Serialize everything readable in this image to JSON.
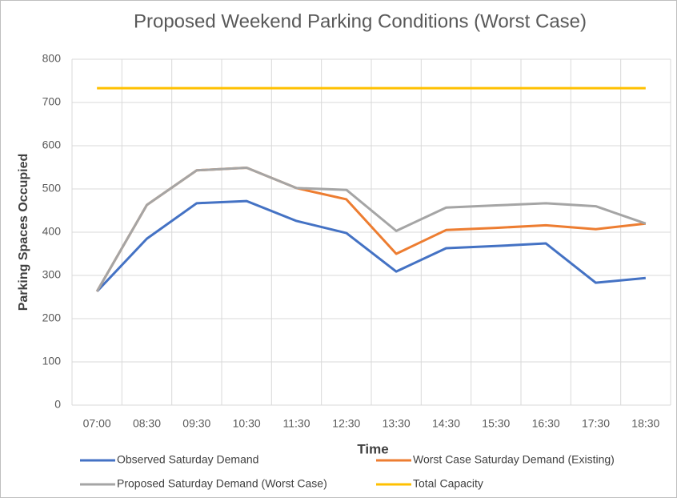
{
  "chart_data": {
    "type": "line",
    "title": "Proposed Weekend Parking Conditions (Worst Case)",
    "x_label": "Time",
    "y_label": "Parking Spaces Occupied",
    "categories": [
      "07:00",
      "08:30",
      "09:30",
      "10:30",
      "11:30",
      "12:30",
      "13:30",
      "14:30",
      "15:30",
      "16:30",
      "17:30",
      "18:30"
    ],
    "series": [
      {
        "name": "Observed Saturday Demand",
        "color": "#4472c4",
        "values": [
          263,
          385,
          467,
          472,
          426,
          398,
          309,
          363,
          368,
          374,
          283,
          294
        ]
      },
      {
        "name": "Worst Case Saturday Demand (Existing)",
        "color": "#ed7d31",
        "values": [
          263,
          463,
          543,
          549,
          502,
          476,
          350,
          405,
          410,
          416,
          407,
          420
        ]
      },
      {
        "name": "Proposed Saturday Demand (Worst Case)",
        "color": "#a5a5a5",
        "values": [
          263,
          463,
          543,
          549,
          502,
          498,
          403,
          457,
          462,
          467,
          460,
          420
        ]
      },
      {
        "name": "Total Capacity",
        "color": "#ffc000",
        "values": [
          733,
          733,
          733,
          733,
          733,
          733,
          733,
          733,
          733,
          733,
          733,
          733
        ]
      }
    ],
    "ylim": [
      0,
      800
    ],
    "yticks": [
      0,
      100,
      200,
      300,
      400,
      500,
      600,
      700,
      800
    ],
    "grid": true
  }
}
